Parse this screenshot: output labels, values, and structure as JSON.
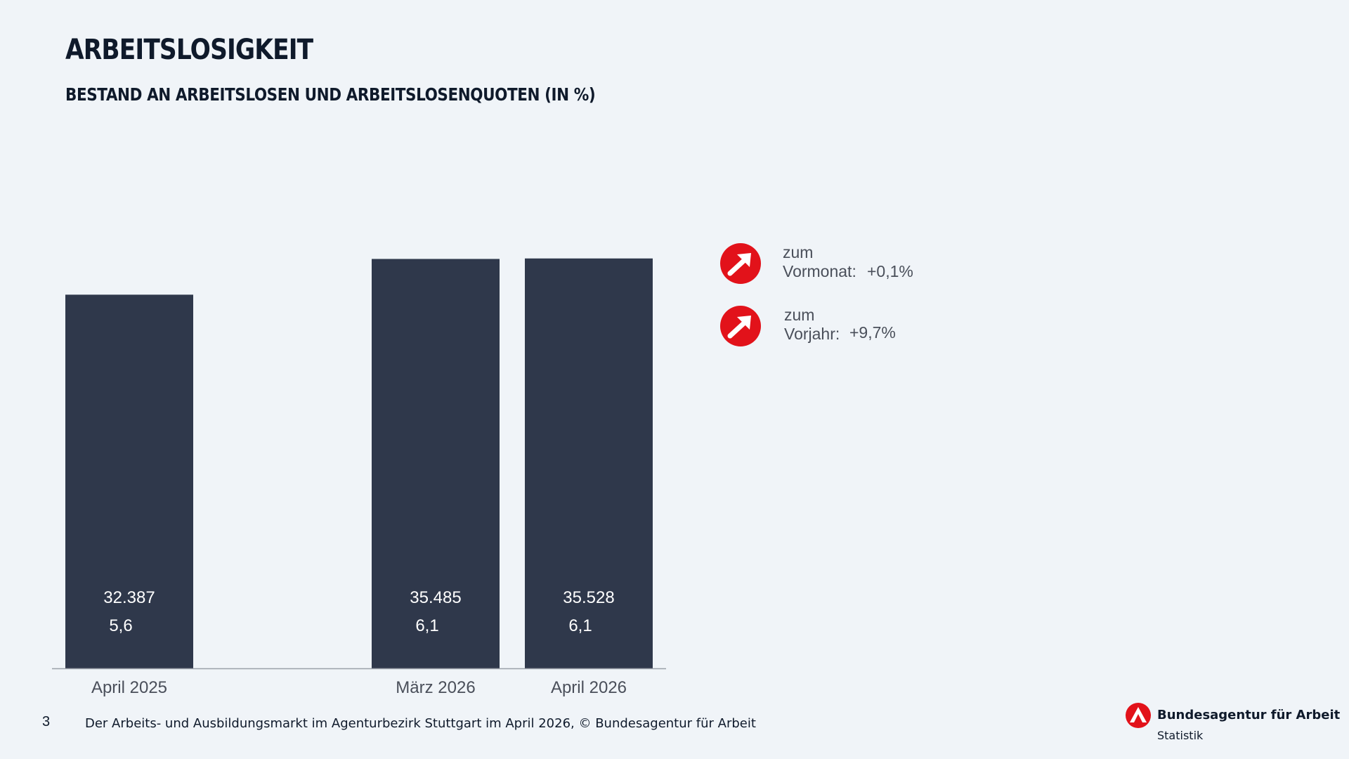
{
  "page": {
    "title": "ARBEITSLOSIGKEIT",
    "subtitle": "BESTAND AN ARBEITSLOSEN UND ARBEITSLOSENQUOTEN (IN %)"
  },
  "chart_data": {
    "type": "bar",
    "categories": [
      "April 2025",
      "",
      "März 2026",
      "April 2026"
    ],
    "series": [
      {
        "values": [
          32387,
          null,
          35485,
          35528
        ]
      }
    ],
    "bar_labels": [
      "32.387",
      "",
      "35.485",
      "35.528"
    ],
    "rate_labels": [
      "5,6",
      "",
      "6,1",
      "6,1"
    ],
    "ylim": [
      0,
      36000
    ],
    "grid": false,
    "bar_color": "#2f384b"
  },
  "changes": [
    {
      "icon": "arrow-up-right-icon",
      "line1": "zum",
      "line2": "Vormonat:",
      "value": "+0,1%"
    },
    {
      "icon": "arrow-up-right-icon",
      "line1": "zum",
      "line2": "Vorjahr:",
      "value": "+9,7%"
    }
  ],
  "colors": {
    "accent": "#e2121a",
    "background": "#f0f4f8",
    "bar": "#2f384b"
  },
  "footer": {
    "page_number": "3",
    "text": "Der Arbeits- und Ausbildungsmarkt  im Agenturbezirk  Stuttgart  im April 2026, © Bundesagentur  für Arbeit"
  },
  "logo": {
    "icon": "ba-logo-icon",
    "name": "Bundesagentur für Arbeit",
    "sub": "Statistik"
  }
}
